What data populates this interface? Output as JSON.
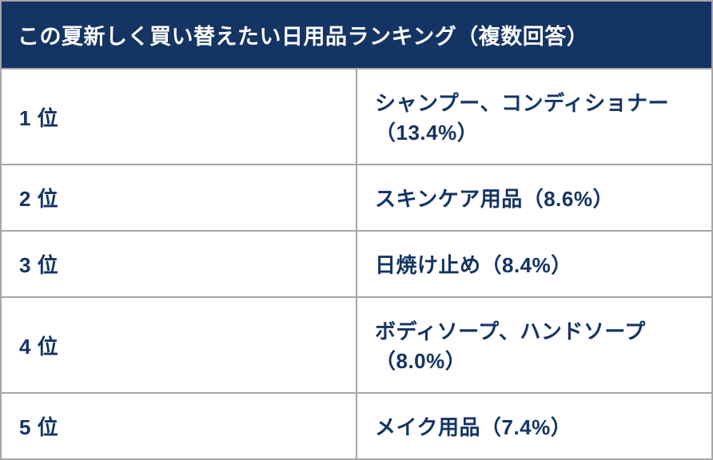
{
  "table": {
    "title": "この夏新しく買い替えたい日用品ランキング（複数回答）",
    "header_bg_color": "#143463",
    "header_text_color": "#ffffff",
    "header_fontsize": 27,
    "cell_text_color": "#143463",
    "cell_bg_color": "#ffffff",
    "border_color": "#a6a6a6",
    "cell_fontsize": 26,
    "rank_col_width": 172,
    "item_col_width": 720,
    "rows": [
      {
        "rank": "1 位",
        "item": "シャンプー、コンディショナー（13.4%）"
      },
      {
        "rank": "2 位",
        "item": "スキンケア用品（8.6%）"
      },
      {
        "rank": "3 位",
        "item": "日焼け止め（8.4%）"
      },
      {
        "rank": "4 位",
        "item": "ボディソープ、ハンドソープ（8.0%）"
      },
      {
        "rank": "5 位",
        "item": "メイク用品（7.4%）"
      }
    ]
  }
}
